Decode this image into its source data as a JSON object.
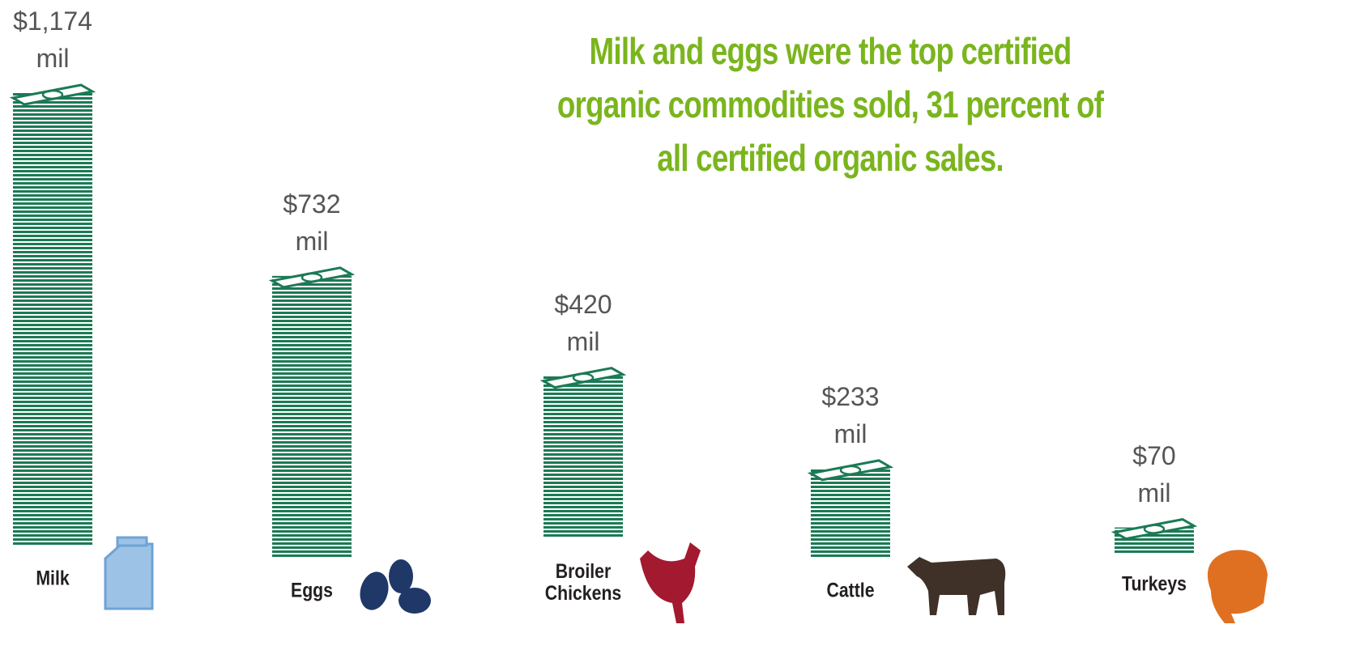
{
  "chart_data": {
    "type": "bar",
    "title": "Milk and eggs were the top certified organic commodities sold, 31 percent of all certified organic sales.",
    "categories": [
      "Milk",
      "Eggs",
      "Broiler Chickens",
      "Cattle",
      "Turkeys"
    ],
    "values": [
      1174,
      732,
      420,
      233,
      70
    ],
    "value_labels": [
      "$1,174 mil",
      "$732 mil",
      "$420 mil",
      "$233 mil",
      "$70 mil"
    ],
    "color": "#1b7a55"
  }
}
